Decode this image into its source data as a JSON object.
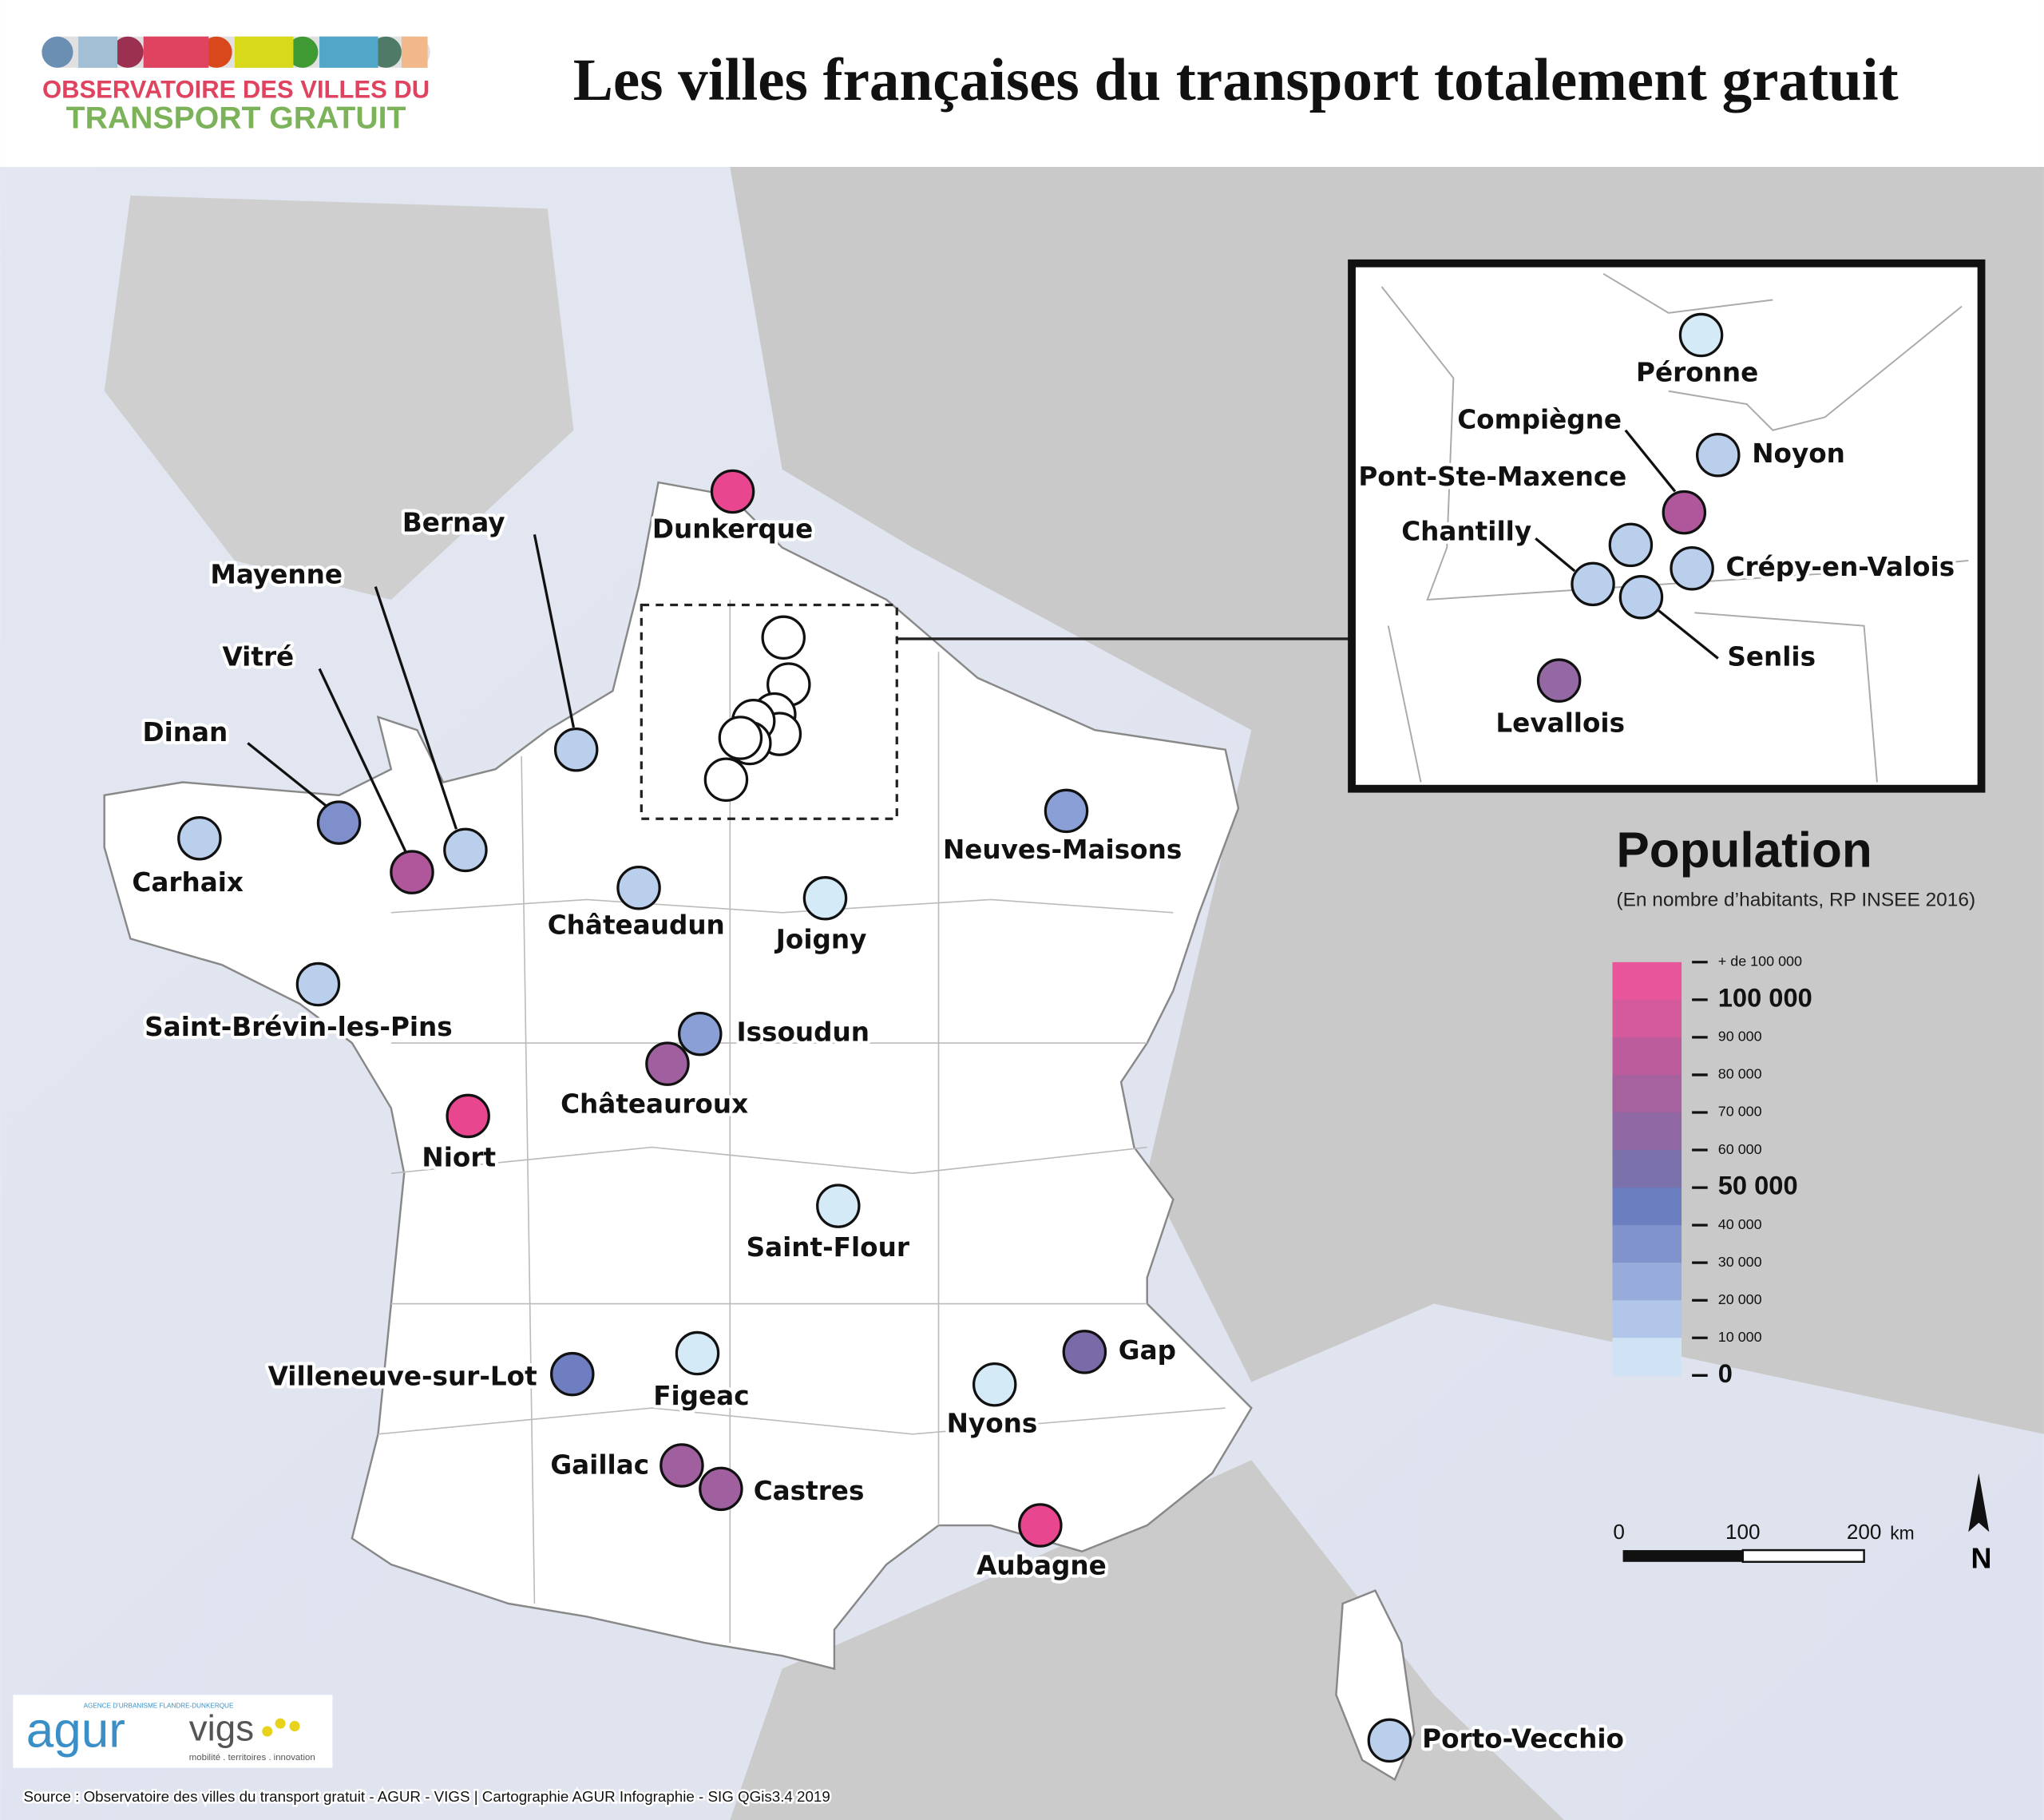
{
  "header": {
    "logo_line1": "OBSERVATOIRE DES VILLES DU",
    "logo_line2": "TRANSPORT GRATUIT",
    "title": "Les villes françaises du transport totalement gratuit"
  },
  "cities": [
    {
      "name": "Dunkerque",
      "color": "#e8468f"
    },
    {
      "name": "Bernay",
      "color": "#b9cfec"
    },
    {
      "name": "Mayenne",
      "color": "#b9cfec"
    },
    {
      "name": "Vitré",
      "color": "#b0569a"
    },
    {
      "name": "Dinan",
      "color": "#7f8fcc"
    },
    {
      "name": "Carhaix",
      "color": "#b9cfec"
    },
    {
      "name": "Châteaudun",
      "color": "#b9cfec"
    },
    {
      "name": "Joigny",
      "color": "#d4eaf7"
    },
    {
      "name": "Neuves-Maisons",
      "color": "#8a9fd6"
    },
    {
      "name": "Saint-Brévin-les-Pins",
      "color": "#b9cfec"
    },
    {
      "name": "Issoudun",
      "color": "#8a9fd6"
    },
    {
      "name": "Châteauroux",
      "color": "#a0609f"
    },
    {
      "name": "Niort",
      "color": "#e8468f"
    },
    {
      "name": "Saint-Flour",
      "color": "#d4eaf7"
    },
    {
      "name": "Villeneuve-sur-Lot",
      "color": "#6f7ec0"
    },
    {
      "name": "Figeac",
      "color": "#d4eaf7"
    },
    {
      "name": "Gaillac",
      "color": "#a0609f"
    },
    {
      "name": "Castres",
      "color": "#a0609f"
    },
    {
      "name": "Nyons",
      "color": "#d4eaf7"
    },
    {
      "name": "Gap",
      "color": "#7b6aa8"
    },
    {
      "name": "Aubagne",
      "color": "#e8468f"
    },
    {
      "name": "Porto-Vecchio",
      "color": "#b9cfec"
    }
  ],
  "inset_cities": [
    {
      "name": "Péronne",
      "color": "#d4eaf7"
    },
    {
      "name": "Noyon",
      "color": "#b9cfec"
    },
    {
      "name": "Compiègne",
      "color": "#b0569a"
    },
    {
      "name": "Pont-Ste-Maxence",
      "color": "#b9cfec"
    },
    {
      "name": "Chantilly",
      "color": "#b9cfec"
    },
    {
      "name": "Crépy-en-Valois",
      "color": "#b9cfec"
    },
    {
      "name": "Senlis",
      "color": "#b9cfec"
    },
    {
      "name": "Levallois",
      "color": "#9468a2"
    }
  ],
  "legend": {
    "title": "Population",
    "subtitle": "(En nombre d’habitants, RP INSEE 2016)",
    "labels": [
      "+ de 100 000",
      "100 000",
      "90 000",
      "80 000",
      "70 000",
      "60 000",
      "50 000",
      "40 000",
      "30 000",
      "20 000",
      "10 000",
      "0"
    ],
    "colors": [
      "#e8559a",
      "#d45a9c",
      "#bd5c9d",
      "#a6629f",
      "#9068a3",
      "#7b71ab",
      "#6a7ec0",
      "#8093cd",
      "#98acdb",
      "#b1c6e8",
      "#cfe3f5"
    ]
  },
  "scale": {
    "labels": [
      "0",
      "100",
      "200"
    ],
    "unit": "km"
  },
  "north": "N",
  "footer": {
    "agur": "agur",
    "agur_tagline": "AGENCE D'URBANISME FLANDRE-DUNKERQUE",
    "vigs": "vigs",
    "vigs_tagline": "mobilité . territoires . innovation",
    "source": "Source : Observatoire des villes du transport gratuit - AGUR - VIGS | Cartographie AGUR Infographie - SIG QGis3.4 2019"
  }
}
